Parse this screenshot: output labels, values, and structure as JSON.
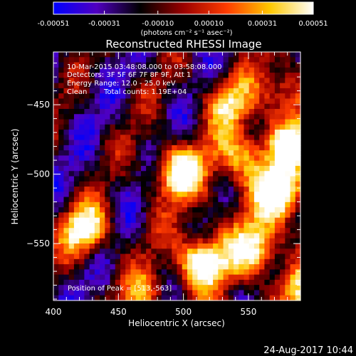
{
  "chart_data": {
    "type": "heatmap",
    "title": "Reconstructed RHESSI Image",
    "xlabel": "Heliocentric X (arcsec)",
    "ylabel": "Heliocentric Y (arcsec)",
    "xlim": [
      400,
      590
    ],
    "ylim": [
      -591,
      -412
    ],
    "x_ticks": [
      400,
      450,
      500,
      550
    ],
    "y_ticks": [
      -450,
      -500,
      -550
    ],
    "colorbar": {
      "range": [
        -0.00051,
        0.00051
      ],
      "tick_labels": [
        "-0.00051",
        "-0.00031",
        "-0.00010",
        "0.00010",
        "0.00031",
        "0.00051"
      ],
      "tick_values": [
        -0.00051,
        -0.00031,
        -0.0001,
        0.0001,
        0.00031,
        0.00051
      ],
      "label": "(photons cm⁻² s⁻¹ asec⁻²)",
      "colormap": [
        "#0000ff",
        "#5000c0",
        "#000000",
        "#9a0000",
        "#ff3c00",
        "#ffc800",
        "#ffffff"
      ]
    },
    "annotations": [
      "10-Mar-2015 03:48:08.000 to 03:58:08.000",
      "Detectors: 3F 5F 6F 7F 8F 9F, Att 1",
      "Energy Range: 12.0 - 25.0 keV",
      "Clean",
      "Total counts: 1.19E+04",
      "Position of Peak = [513,-563]"
    ],
    "peak": {
      "x": 513,
      "y": -563
    },
    "bright_sources": [
      {
        "x": 425,
        "y": -540,
        "strength": 1.3
      },
      {
        "x": 495,
        "y": -498,
        "strength": 1.3
      },
      {
        "x": 513,
        "y": -563,
        "strength": 1.5
      },
      {
        "x": 555,
        "y": -555,
        "strength": 1.0
      },
      {
        "x": 575,
        "y": -515,
        "strength": 1.2
      },
      {
        "x": 545,
        "y": -488,
        "strength": 0.9
      },
      {
        "x": 580,
        "y": -478,
        "strength": 1.0
      },
      {
        "x": 535,
        "y": -448,
        "strength": 0.8
      },
      {
        "x": 580,
        "y": -440,
        "strength": 0.8
      },
      {
        "x": 470,
        "y": -588,
        "strength": 0.7
      },
      {
        "x": 590,
        "y": -585,
        "strength": 0.7
      }
    ]
  },
  "footer": {
    "timestamp": "24-Aug-2017 10:44"
  }
}
